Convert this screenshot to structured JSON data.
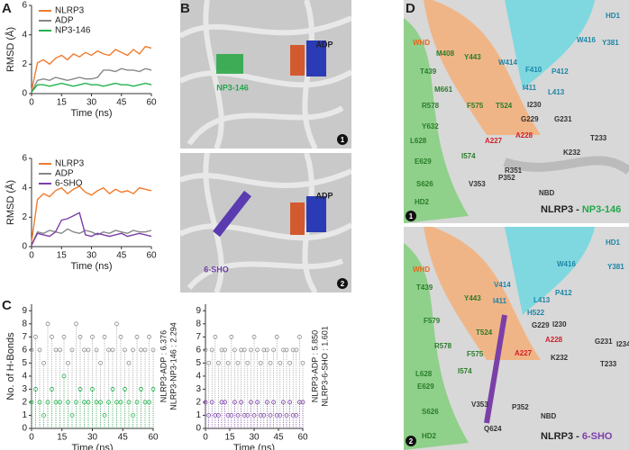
{
  "panel_labels": [
    "A",
    "B",
    "C",
    "D"
  ],
  "chart_data": [
    {
      "type": "line",
      "xlabel": "Time (ns)",
      "ylabel": "RMSD (Å)",
      "x": [
        0,
        3,
        6,
        9,
        12,
        15,
        18,
        21,
        24,
        27,
        30,
        33,
        36,
        39,
        42,
        45,
        48,
        51,
        54,
        57,
        60
      ],
      "xlim": [
        0,
        60
      ],
      "xticks": [
        0,
        15,
        30,
        45,
        60
      ],
      "ylim": [
        0,
        6
      ],
      "yticks": [
        0,
        2,
        4,
        6
      ],
      "series": [
        {
          "name": "NLRP3",
          "color": "#f07b2e",
          "values": [
            0.2,
            2.1,
            2.3,
            2.0,
            2.4,
            2.6,
            2.3,
            2.7,
            2.5,
            2.8,
            2.6,
            2.9,
            2.7,
            2.6,
            3.0,
            2.8,
            2.6,
            3.0,
            2.7,
            3.2,
            3.1
          ]
        },
        {
          "name": "ADP",
          "color": "#888888",
          "values": [
            0.1,
            0.9,
            1.0,
            0.9,
            1.1,
            1.0,
            0.9,
            1.0,
            1.1,
            1.0,
            1.0,
            1.1,
            1.6,
            1.6,
            1.5,
            1.7,
            1.6,
            1.6,
            1.5,
            1.7,
            1.6
          ]
        },
        {
          "name": "NP3-146",
          "color": "#22b24c",
          "values": [
            0.1,
            0.6,
            0.6,
            0.5,
            0.6,
            0.7,
            0.6,
            0.5,
            0.6,
            0.7,
            0.6,
            0.6,
            0.5,
            0.6,
            0.7,
            0.6,
            0.6,
            0.5,
            0.6,
            0.7,
            0.6
          ]
        }
      ]
    },
    {
      "type": "line",
      "xlabel": "Time (ns)",
      "ylabel": "RMSD (Å)",
      "x": [
        0,
        3,
        6,
        9,
        12,
        15,
        18,
        21,
        24,
        27,
        30,
        33,
        36,
        39,
        42,
        45,
        48,
        51,
        54,
        57,
        60
      ],
      "xlim": [
        0,
        60
      ],
      "xticks": [
        0,
        15,
        30,
        45,
        60
      ],
      "ylim": [
        0,
        6
      ],
      "yticks": [
        0,
        2,
        4,
        6
      ],
      "series": [
        {
          "name": "NLRP3",
          "color": "#f07b2e",
          "values": [
            0.3,
            3.2,
            3.6,
            3.4,
            3.8,
            4.0,
            3.6,
            3.9,
            4.1,
            3.7,
            3.5,
            3.8,
            4.0,
            3.6,
            3.9,
            3.7,
            3.8,
            3.6,
            4.0,
            3.9,
            3.8
          ]
        },
        {
          "name": "ADP",
          "color": "#888888",
          "values": [
            0.1,
            1.0,
            0.9,
            1.1,
            1.0,
            0.9,
            1.2,
            1.0,
            0.9,
            1.1,
            1.0,
            0.8,
            1.0,
            0.9,
            1.1,
            1.0,
            0.9,
            1.1,
            1.0,
            1.0,
            1.1
          ]
        },
        {
          "name": "6-SHO",
          "color": "#7b3fa8",
          "values": [
            0.1,
            0.9,
            0.8,
            0.7,
            1.0,
            1.8,
            1.9,
            2.1,
            2.3,
            0.8,
            0.7,
            0.9,
            0.8,
            0.7,
            0.8,
            0.9,
            0.7,
            0.8,
            0.9,
            0.8,
            0.7
          ]
        }
      ]
    },
    {
      "type": "scatter",
      "xlabel": "Time (ns)",
      "ylabel": "No. of H-Bonds",
      "x": [
        0,
        2,
        4,
        6,
        8,
        10,
        12,
        14,
        16,
        18,
        20,
        22,
        24,
        26,
        28,
        30,
        32,
        34,
        36,
        38,
        40,
        42,
        44,
        46,
        48,
        50,
        52,
        54,
        56,
        58,
        60
      ],
      "xlim": [
        0,
        60
      ],
      "xticks": [
        0,
        15,
        30,
        45,
        60
      ],
      "ylim": [
        0,
        9.5
      ],
      "yticks": [
        0,
        1,
        2,
        3,
        4,
        5,
        6,
        7,
        8,
        9
      ],
      "annotations": [
        "NLRP3-ADP : 6.376",
        "NLRP3-NP3-146 : 2.294"
      ],
      "series": [
        {
          "color": "#8c8c8c",
          "values": [
            6,
            7,
            6,
            5,
            8,
            7,
            6,
            6,
            7,
            5,
            6,
            8,
            7,
            6,
            6,
            7,
            6,
            5,
            7,
            6,
            6,
            8,
            7,
            6,
            5,
            6,
            7,
            6,
            6,
            7,
            6
          ]
        },
        {
          "color": "#22b24c",
          "values": [
            2,
            3,
            2,
            1,
            2,
            3,
            2,
            2,
            4,
            2,
            1,
            2,
            3,
            2,
            2,
            3,
            2,
            2,
            1,
            2,
            3,
            2,
            2,
            3,
            2,
            1,
            2,
            3,
            2,
            2,
            3
          ]
        }
      ]
    },
    {
      "type": "scatter",
      "xlabel": "Time (ns)",
      "x": [
        0,
        2,
        4,
        6,
        8,
        10,
        12,
        14,
        16,
        18,
        20,
        22,
        24,
        26,
        28,
        30,
        32,
        34,
        36,
        38,
        40,
        42,
        44,
        46,
        48,
        50,
        52,
        54,
        56,
        58,
        60
      ],
      "xlim": [
        0,
        60
      ],
      "xticks": [
        0,
        15,
        30,
        45,
        60
      ],
      "ylim": [
        0,
        9.5
      ],
      "yticks": [
        0,
        1,
        2,
        3,
        4,
        5,
        6,
        7,
        8,
        9
      ],
      "annotations": [
        "NLRP3-ADP : 5.850",
        "NLRP3-6-SHO : 1.601"
      ],
      "series": [
        {
          "color": "#8c8c8c",
          "values": [
            6,
            5,
            6,
            7,
            5,
            6,
            6,
            5,
            7,
            6,
            5,
            6,
            6,
            5,
            6,
            7,
            6,
            5,
            6,
            6,
            5,
            6,
            7,
            5,
            6,
            6,
            5,
            6,
            6,
            7,
            5
          ]
        },
        {
          "color": "#7b3fa8",
          "values": [
            2,
            1,
            2,
            1,
            1,
            2,
            2,
            1,
            1,
            2,
            1,
            2,
            1,
            1,
            2,
            1,
            2,
            1,
            1,
            2,
            1,
            2,
            1,
            1,
            2,
            1,
            2,
            1,
            1,
            2,
            2
          ]
        }
      ]
    }
  ],
  "panel_b": [
    {
      "labels": [
        "ADP",
        "NP3-146"
      ],
      "number": "1"
    },
    {
      "labels": [
        "ADP",
        "6-SHO"
      ],
      "number": "2"
    }
  ],
  "panel_d": [
    {
      "labels": [
        "WHD",
        "HD1",
        "Y381",
        "W416",
        "M408",
        "Y443",
        "W414",
        "T439",
        "F410",
        "P412",
        "M661",
        "I411",
        "L413",
        "R578",
        "F575",
        "T524",
        "I230",
        "G229",
        "G231",
        "Y632",
        "L628",
        "A227",
        "A228",
        "T233",
        "K232",
        "E629",
        "I574",
        "R351",
        "S626",
        "V353",
        "P352",
        "HD2",
        "NBD"
      ],
      "title": [
        "NLRP3 - ",
        "NP3-146"
      ],
      "number": "1"
    },
    {
      "labels": [
        "WHD",
        "HD1",
        "Y381",
        "W416",
        "T439",
        "V414",
        "Y443",
        "I411",
        "L413",
        "P412",
        "T524",
        "H522",
        "I230",
        "F579",
        "G229",
        "F575",
        "A228",
        "G231",
        "I234",
        "R578",
        "A227",
        "K232",
        "T233",
        "I574",
        "L628",
        "E629",
        "S626",
        "V353",
        "P352",
        "Q624",
        "HD2",
        "NBD"
      ],
      "title": [
        "NLRP3 - ",
        "6-SHO"
      ],
      "number": "2"
    }
  ]
}
